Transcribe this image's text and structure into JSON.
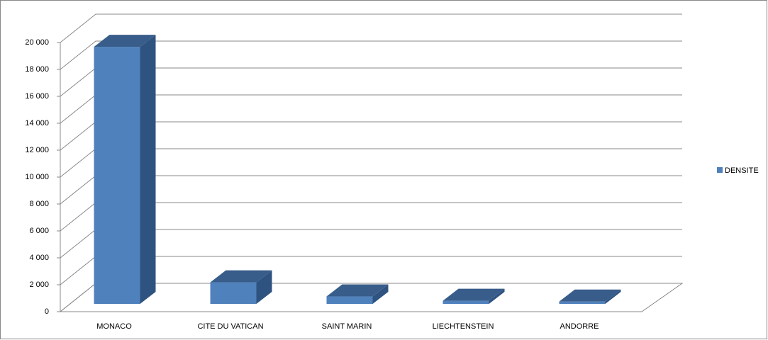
{
  "chart_data": {
    "type": "bar3d",
    "categories": [
      "MONACO",
      "CITE DU VATICAN",
      "SAINT MARIN",
      "LIECHTENSTEIN",
      "ANDORRE"
    ],
    "series": [
      {
        "name": "DENSITE",
        "color": "#4f81bd",
        "values": [
          19100,
          1600,
          550,
          230,
          170
        ]
      }
    ],
    "ylim": [
      0,
      20000
    ],
    "yticks": [
      0,
      {
        "value": 2000,
        "label": "2 000"
      },
      {
        "value": 4000,
        "label": "4 000"
      },
      {
        "value": 6000,
        "label": "6 000"
      },
      {
        "value": 8000,
        "label": "8 000"
      },
      {
        "value": 10000,
        "label": "10 000"
      },
      {
        "value": 12000,
        "label": "12 000"
      },
      {
        "value": 14000,
        "label": "14 000"
      },
      {
        "value": 16000,
        "label": "16 000"
      },
      {
        "value": 18000,
        "label": "18 000"
      },
      {
        "value": 20000,
        "label": "20 000"
      }
    ],
    "grid": true,
    "legend": "right"
  }
}
